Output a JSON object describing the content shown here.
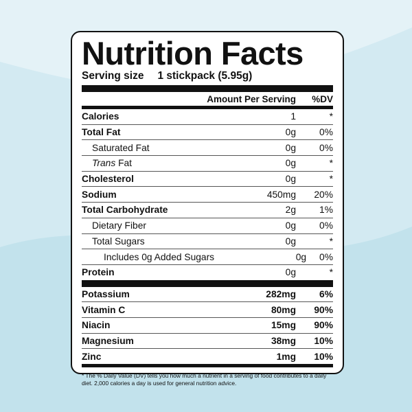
{
  "label": {
    "title": "Nutrition Facts",
    "serving_label": "Serving size",
    "serving_value": "1 stickpack (5.95g)",
    "header_amount": "Amount Per Serving",
    "header_dv": "%DV",
    "nutrients": [
      {
        "name": "Calories",
        "amount": "1",
        "dv": "*"
      },
      {
        "name": "Total Fat",
        "amount": "0g",
        "dv": "0%"
      },
      {
        "name": "Saturated Fat",
        "amount": "0g",
        "dv": "0%"
      },
      {
        "name_pre": "Trans",
        "name_post": " Fat",
        "amount": "0g",
        "dv": "*"
      },
      {
        "name": "Cholesterol",
        "amount": "0g",
        "dv": "*"
      },
      {
        "name": "Sodium",
        "amount": "450mg",
        "dv": "20%"
      },
      {
        "name": "Total Carbohydrate",
        "amount": "2g",
        "dv": "1%"
      },
      {
        "name": "Dietary Fiber",
        "amount": "0g",
        "dv": "0%"
      },
      {
        "name": "Total Sugars",
        "amount": "0g",
        "dv": "*"
      },
      {
        "name": "Includes 0g Added Sugars",
        "amount": "0g",
        "dv": "0%"
      },
      {
        "name": "Protein",
        "amount": "0g",
        "dv": "*"
      }
    ],
    "vitamins": [
      {
        "name": "Potassium",
        "amount": "282mg",
        "dv": "6%"
      },
      {
        "name": "Vitamin C",
        "amount": "80mg",
        "dv": "90%"
      },
      {
        "name": "Niacin",
        "amount": "15mg",
        "dv": "90%"
      },
      {
        "name": "Magnesium",
        "amount": "38mg",
        "dv": "10%"
      },
      {
        "name": "Zinc",
        "amount": "1mg",
        "dv": "10%"
      }
    ],
    "footnote": "* The % Daily Value (DV) tells you how much a nutrient in a serving of food contributes to a daily diet. 2,000 calories a day is used for general nutrition advice."
  },
  "colors": {
    "background": "#e4f2f7",
    "wave": "#cfe7f0",
    "ink": "#111111"
  }
}
